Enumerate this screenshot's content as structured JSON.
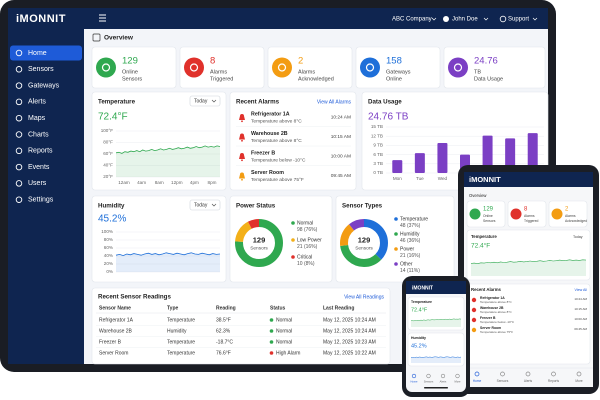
{
  "brand": "iMONNIT",
  "topbar": {
    "company": "ABC Company",
    "user": "John Doe",
    "support": "Support"
  },
  "nav": [
    "Home",
    "Sensors",
    "Gateways",
    "Alerts",
    "Maps",
    "Charts",
    "Reports",
    "Events",
    "Users",
    "Settings"
  ],
  "page_title": "Overview",
  "stats": [
    {
      "value": "129",
      "label": [
        "Online",
        "Sensors"
      ],
      "color": "#2fa84f"
    },
    {
      "value": "8",
      "label": [
        "Alarms",
        "Triggered"
      ],
      "color": "#e0312b"
    },
    {
      "value": "2",
      "label": [
        "Alarms",
        "Acknowledged"
      ],
      "color": "#f39c12"
    },
    {
      "value": "158",
      "label": [
        "Gateways",
        "Online"
      ],
      "color": "#1e6fd9"
    },
    {
      "value": "24.76",
      "label": [
        "TB",
        "Data Usage"
      ],
      "color": "#7b3fc4"
    }
  ],
  "temperature": {
    "title": "Temperature",
    "range": "Today",
    "current": "72.4°F",
    "chart": {
      "type": "line",
      "color": "#2fa84f",
      "categories": [
        "12am",
        "4am",
        "8am",
        "12pm",
        "4pm",
        "8pm"
      ],
      "values": [
        62,
        63,
        61,
        64,
        63,
        65,
        64,
        66,
        64,
        67,
        65,
        66,
        68,
        66,
        67,
        69,
        67,
        68,
        70,
        68,
        69,
        71,
        69,
        70,
        72,
        70,
        71,
        73,
        71,
        72,
        74,
        72,
        73,
        72,
        74,
        73
      ],
      "ylim": [
        20,
        100
      ],
      "yticks": [
        {
          "value": 100,
          "label": "100°F"
        },
        {
          "value": 80,
          "label": "80°F"
        },
        {
          "value": 60,
          "label": "60°F"
        },
        {
          "value": 40,
          "label": "40°F"
        },
        {
          "value": 20,
          "label": "20°F"
        }
      ]
    }
  },
  "humidity": {
    "title": "Humidity",
    "range": "Today",
    "current": "45.2%",
    "chart": {
      "type": "line",
      "color": "#1e6fd9",
      "values": [
        42,
        44,
        41,
        45,
        43,
        46,
        44,
        42,
        45,
        47,
        44,
        46,
        43,
        45,
        48,
        46,
        44,
        47,
        45,
        43,
        46,
        48,
        45,
        44,
        47,
        45,
        43,
        46,
        44,
        45
      ],
      "ylim": [
        0,
        100
      ],
      "yticks": [
        {
          "value": 100,
          "label": "100%"
        },
        {
          "value": 80,
          "label": "80%"
        },
        {
          "value": 60,
          "label": "60%"
        },
        {
          "value": 40,
          "label": "40%"
        },
        {
          "value": 20,
          "label": "20%"
        },
        {
          "value": 0,
          "label": "0%"
        }
      ]
    }
  },
  "recent_alarms": {
    "title": "Recent Alarms",
    "link": "View All Alarms",
    "items": [
      {
        "name": "Refrigerator 1A",
        "detail": "Temperature above 8°C",
        "time": "10:24 AM",
        "color": "#e0312b"
      },
      {
        "name": "Warehouse 2B",
        "detail": "Temperature above 8°C",
        "time": "10:15 AM",
        "color": "#e0312b"
      },
      {
        "name": "Freezer B",
        "detail": "Temperature below -10°C",
        "time": "10:00 AM",
        "color": "#e0312b"
      },
      {
        "name": "Server Room",
        "detail": "Temperature above 75°F",
        "time": "09:45 AM",
        "color": "#f39c12"
      }
    ]
  },
  "data_usage": {
    "title": "Data Usage",
    "current": "24.76 TB",
    "chart": {
      "type": "bar",
      "color": "#7b3fc4",
      "categories": [
        "Mon",
        "Tue",
        "Wed",
        "Thu",
        "Fri",
        "Sat",
        "Sun"
      ],
      "values": [
        4.2,
        6.5,
        9.8,
        6,
        12.2,
        11.3,
        13
      ],
      "ylim": [
        0,
        15
      ],
      "yticks": [
        {
          "value": 15,
          "label": "15 TB"
        },
        {
          "value": 12,
          "label": "12 TB"
        },
        {
          "value": 9,
          "label": "9 TB"
        },
        {
          "value": 6,
          "label": "6 TB"
        },
        {
          "value": 3,
          "label": "3 TB"
        },
        {
          "value": 0,
          "label": "0 TB"
        }
      ]
    }
  },
  "power_status": {
    "title": "Power Status",
    "center_value": "129",
    "center_label": "Sensors",
    "chart": {
      "type": "donut",
      "series": [
        {
          "name": "Normal",
          "value": 98,
          "value_label": "98 (76%)",
          "color": "#2fa84f"
        },
        {
          "name": "Low Power",
          "value": 21,
          "value_label": "21 (16%)",
          "color": "#f3b019"
        },
        {
          "name": "Critical",
          "value": 10,
          "value_label": "10 (8%)",
          "color": "#e0312b"
        }
      ]
    }
  },
  "sensor_types": {
    "title": "Sensor Types",
    "center_value": "129",
    "center_label": "Sensors",
    "chart": {
      "type": "donut",
      "series": [
        {
          "name": "Temperature",
          "value": 48,
          "value_label": "48 (37%)",
          "color": "#1e6fd9"
        },
        {
          "name": "Humidity",
          "value": 46,
          "value_label": "46 (36%)",
          "color": "#2fa84f"
        },
        {
          "name": "Power",
          "value": 21,
          "value_label": "21 (16%)",
          "color": "#f39c12"
        },
        {
          "name": "Other",
          "value": 14,
          "value_label": "14 (11%)",
          "color": "#7b3fc4"
        }
      ]
    }
  },
  "readings": {
    "title": "Recent Sensor Readings",
    "link": "View All Readings",
    "headers": [
      "Sensor Name",
      "Type",
      "Reading",
      "Status",
      "Last Reading"
    ],
    "rows": [
      {
        "cells": [
          "Refrigerator 1A",
          "Temperature",
          "38.5°F",
          "Normal",
          "May 12, 2025 10:24 AM"
        ],
        "status_color": "#2fa84f"
      },
      {
        "cells": [
          "Warehouse 2B",
          "Humidity",
          "62.3%",
          "Normal",
          "May 12, 2025 10:24 AM"
        ],
        "status_color": "#2fa84f"
      },
      {
        "cells": [
          "Freezer B",
          "Temperature",
          "-18.7°C",
          "Normal",
          "May 12, 2025 10:23 AM"
        ],
        "status_color": "#2fa84f"
      },
      {
        "cells": [
          "Server Room",
          "Temperature",
          "76.6°F",
          "High Alarm",
          "May 12, 2025 10:22 AM"
        ],
        "status_color": "#e0312b"
      }
    ]
  },
  "mobile": {
    "view_all": "View All",
    "more": "More"
  }
}
